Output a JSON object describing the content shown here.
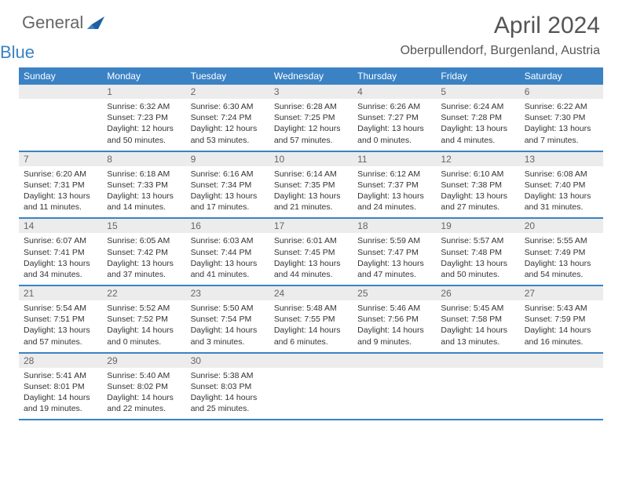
{
  "logo": {
    "text1": "General",
    "text2": "Blue",
    "color1": "#666666",
    "color2": "#3b82c4"
  },
  "title": "April 2024",
  "location": "Oberpullendorf, Burgenland, Austria",
  "colors": {
    "header_bg": "#3b82c4",
    "daynum_bg": "#ececec",
    "border": "#3b82c4",
    "text": "#333333"
  },
  "weekdays": [
    "Sunday",
    "Monday",
    "Tuesday",
    "Wednesday",
    "Thursday",
    "Friday",
    "Saturday"
  ],
  "weeks": [
    [
      null,
      {
        "n": "1",
        "sr": "6:32 AM",
        "ss": "7:23 PM",
        "dl": "12 hours and 50 minutes."
      },
      {
        "n": "2",
        "sr": "6:30 AM",
        "ss": "7:24 PM",
        "dl": "12 hours and 53 minutes."
      },
      {
        "n": "3",
        "sr": "6:28 AM",
        "ss": "7:25 PM",
        "dl": "12 hours and 57 minutes."
      },
      {
        "n": "4",
        "sr": "6:26 AM",
        "ss": "7:27 PM",
        "dl": "13 hours and 0 minutes."
      },
      {
        "n": "5",
        "sr": "6:24 AM",
        "ss": "7:28 PM",
        "dl": "13 hours and 4 minutes."
      },
      {
        "n": "6",
        "sr": "6:22 AM",
        "ss": "7:30 PM",
        "dl": "13 hours and 7 minutes."
      }
    ],
    [
      {
        "n": "7",
        "sr": "6:20 AM",
        "ss": "7:31 PM",
        "dl": "13 hours and 11 minutes."
      },
      {
        "n": "8",
        "sr": "6:18 AM",
        "ss": "7:33 PM",
        "dl": "13 hours and 14 minutes."
      },
      {
        "n": "9",
        "sr": "6:16 AM",
        "ss": "7:34 PM",
        "dl": "13 hours and 17 minutes."
      },
      {
        "n": "10",
        "sr": "6:14 AM",
        "ss": "7:35 PM",
        "dl": "13 hours and 21 minutes."
      },
      {
        "n": "11",
        "sr": "6:12 AM",
        "ss": "7:37 PM",
        "dl": "13 hours and 24 minutes."
      },
      {
        "n": "12",
        "sr": "6:10 AM",
        "ss": "7:38 PM",
        "dl": "13 hours and 27 minutes."
      },
      {
        "n": "13",
        "sr": "6:08 AM",
        "ss": "7:40 PM",
        "dl": "13 hours and 31 minutes."
      }
    ],
    [
      {
        "n": "14",
        "sr": "6:07 AM",
        "ss": "7:41 PM",
        "dl": "13 hours and 34 minutes."
      },
      {
        "n": "15",
        "sr": "6:05 AM",
        "ss": "7:42 PM",
        "dl": "13 hours and 37 minutes."
      },
      {
        "n": "16",
        "sr": "6:03 AM",
        "ss": "7:44 PM",
        "dl": "13 hours and 41 minutes."
      },
      {
        "n": "17",
        "sr": "6:01 AM",
        "ss": "7:45 PM",
        "dl": "13 hours and 44 minutes."
      },
      {
        "n": "18",
        "sr": "5:59 AM",
        "ss": "7:47 PM",
        "dl": "13 hours and 47 minutes."
      },
      {
        "n": "19",
        "sr": "5:57 AM",
        "ss": "7:48 PM",
        "dl": "13 hours and 50 minutes."
      },
      {
        "n": "20",
        "sr": "5:55 AM",
        "ss": "7:49 PM",
        "dl": "13 hours and 54 minutes."
      }
    ],
    [
      {
        "n": "21",
        "sr": "5:54 AM",
        "ss": "7:51 PM",
        "dl": "13 hours and 57 minutes."
      },
      {
        "n": "22",
        "sr": "5:52 AM",
        "ss": "7:52 PM",
        "dl": "14 hours and 0 minutes."
      },
      {
        "n": "23",
        "sr": "5:50 AM",
        "ss": "7:54 PM",
        "dl": "14 hours and 3 minutes."
      },
      {
        "n": "24",
        "sr": "5:48 AM",
        "ss": "7:55 PM",
        "dl": "14 hours and 6 minutes."
      },
      {
        "n": "25",
        "sr": "5:46 AM",
        "ss": "7:56 PM",
        "dl": "14 hours and 9 minutes."
      },
      {
        "n": "26",
        "sr": "5:45 AM",
        "ss": "7:58 PM",
        "dl": "14 hours and 13 minutes."
      },
      {
        "n": "27",
        "sr": "5:43 AM",
        "ss": "7:59 PM",
        "dl": "14 hours and 16 minutes."
      }
    ],
    [
      {
        "n": "28",
        "sr": "5:41 AM",
        "ss": "8:01 PM",
        "dl": "14 hours and 19 minutes."
      },
      {
        "n": "29",
        "sr": "5:40 AM",
        "ss": "8:02 PM",
        "dl": "14 hours and 22 minutes."
      },
      {
        "n": "30",
        "sr": "5:38 AM",
        "ss": "8:03 PM",
        "dl": "14 hours and 25 minutes."
      },
      null,
      null,
      null,
      null
    ]
  ],
  "labels": {
    "sunrise": "Sunrise:",
    "sunset": "Sunset:",
    "daylight": "Daylight:"
  }
}
